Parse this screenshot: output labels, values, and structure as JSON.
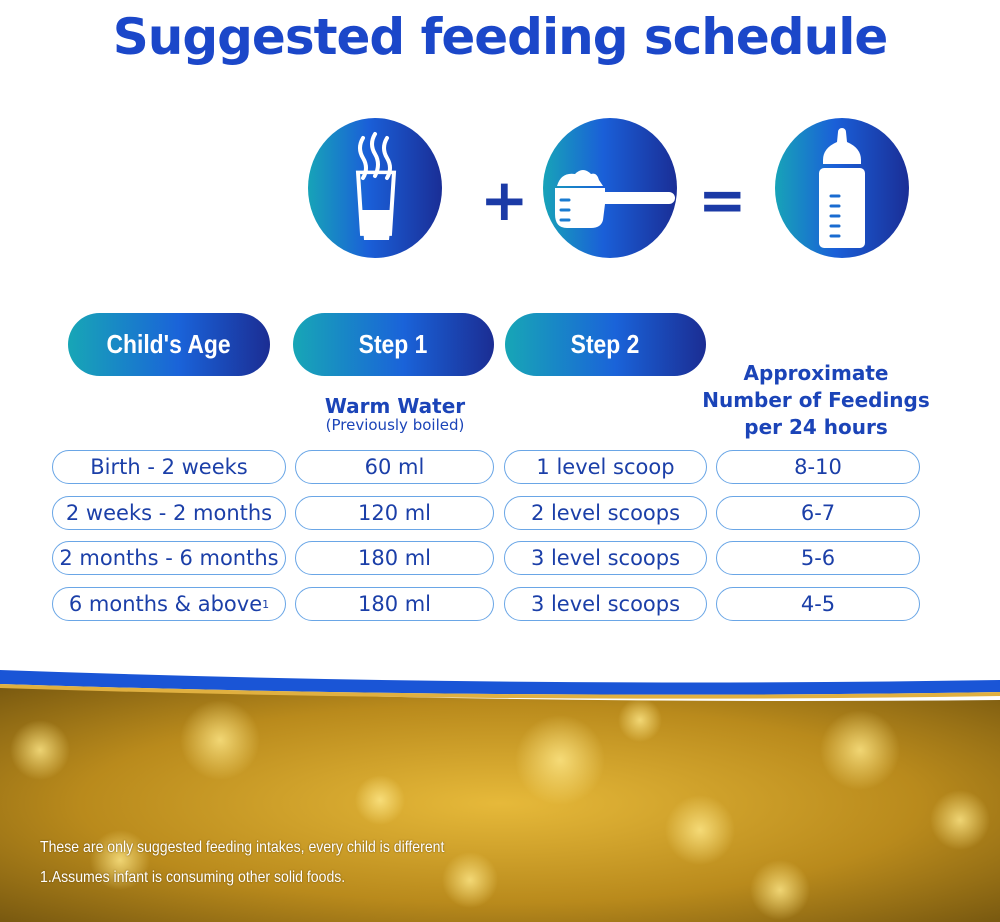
{
  "title": "Suggested feeding schedule",
  "icons": {
    "step1": "warm-water-glass-icon",
    "operator1": "+",
    "step2": "formula-scoop-icon",
    "operator2": "=",
    "result": "baby-bottle-icon"
  },
  "headers": {
    "age": "Child's Age",
    "step1": "Step 1",
    "step2": "Step 2",
    "step1_desc": "Warm Water",
    "step1_note": "(Previously boiled)",
    "feedings_line1": "Approximate",
    "feedings_line2": "Number of Feedings",
    "feedings_line3": "per 24 hours"
  },
  "rows": [
    {
      "age": "Birth - 2 weeks",
      "water": "60 ml",
      "scoops": "1 level scoop",
      "feedings": "8-10"
    },
    {
      "age": "2 weeks - 2 months",
      "water": "120 ml",
      "scoops": "2 level scoops",
      "feedings": "6-7"
    },
    {
      "age": "2 months - 6 months",
      "water": "180 ml",
      "scoops": "3 level scoops",
      "feedings": "5-6"
    },
    {
      "age": "6 months & above",
      "age_sup": "1",
      "water": "180 ml",
      "scoops": "3 level scoops",
      "feedings": "4-5"
    }
  ],
  "footnotes": {
    "disclaimer": "These are only suggested feeding intakes, every child is different",
    "note1": "1.Assumes infant is consuming other solid foods."
  },
  "colors": {
    "title": "#1b47c9",
    "pill_start": "#17a6b6",
    "pill_end": "#1b2d93",
    "cell_border": "#6aa6e6",
    "wave": "#1a55d6",
    "gold": "#c9961e"
  }
}
